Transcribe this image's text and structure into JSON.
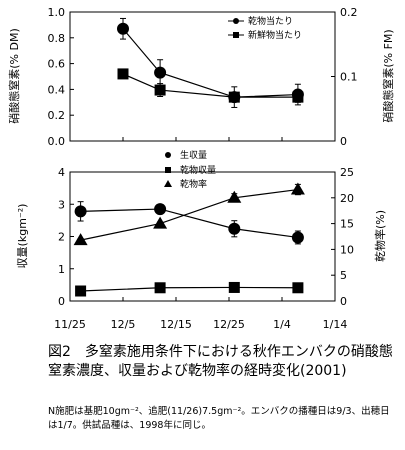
{
  "caption": "図2　多窒素施用条件下における秋作エンバクの硝酸態窒素濃度、収量および乾物率の経時変化(2001)",
  "note": "N施肥は基肥10gm⁻²、追肥(11/26)7.5gm⁻²。エンバクの播種日は9/3、出穂日は1/7。供試品種は、1998年に同じ。",
  "chart_data": [
    {
      "type": "line",
      "panel": "top",
      "x_ticks": [
        "11/25",
        "12/5",
        "12/15",
        "12/25",
        "1/4",
        "1/14"
      ],
      "x_dates": [
        "2001-12-05",
        "2001-12-12",
        "2001-12-26",
        "2002-01-07"
      ],
      "ylabel_left": "硝酸態窒素(% DM)",
      "ylabel_right": "硝酸態窒素(% FM)",
      "ylim_left": [
        0,
        1
      ],
      "ylim_right": [
        0,
        0.2
      ],
      "yticks_left": [
        "0.0",
        "0.2",
        "0.4",
        "0.6",
        "0.8",
        "1.0"
      ],
      "yticks_right": [
        "0",
        "0.1",
        "0.2"
      ],
      "legend_placement": "top-right",
      "series": [
        {
          "name": "乾物当たり",
          "axis": "left",
          "marker": "circle",
          "values": [
            0.87,
            0.53,
            0.34,
            0.36
          ],
          "errors": [
            0.08,
            0.1,
            0.08,
            0.08
          ]
        },
        {
          "name": "新鮮物当たり",
          "axis": "right",
          "marker": "square",
          "values": [
            0.104,
            0.079,
            0.068,
            0.068
          ],
          "errors": [
            0.005,
            0.01,
            0.004,
            0.008
          ]
        }
      ]
    },
    {
      "type": "line",
      "panel": "bottom",
      "x_ticks": [
        "11/25",
        "12/5",
        "12/15",
        "12/25",
        "1/4",
        "1/14"
      ],
      "x_dates": [
        "2001-11-27",
        "2001-12-12",
        "2001-12-26",
        "2002-01-07"
      ],
      "ylabel_left": "収量(kgm⁻²)",
      "ylabel_right": "乾物率(%)",
      "ylim_left": [
        0,
        4
      ],
      "ylim_right": [
        0,
        25
      ],
      "yticks_left": [
        "0",
        "1",
        "2",
        "3",
        "4"
      ],
      "yticks_right": [
        "0",
        "5",
        "10",
        "15",
        "20",
        "25"
      ],
      "legend_placement": "top-left",
      "series": [
        {
          "name": "生収量",
          "axis": "left",
          "marker": "circle",
          "values": [
            2.78,
            2.85,
            2.24,
            1.97
          ],
          "errors": [
            0.3,
            0.12,
            0.25,
            0.2
          ]
        },
        {
          "name": "乾物収量",
          "axis": "left",
          "marker": "square",
          "values": [
            0.31,
            0.41,
            0.42,
            0.41
          ],
          "errors": [
            0.02,
            0.03,
            0.03,
            0.03
          ]
        },
        {
          "name": "乾物率",
          "axis": "right",
          "marker": "triangle",
          "values": [
            11.8,
            15.0,
            20.0,
            21.6
          ],
          "errors": [
            0.3,
            0.3,
            0.8,
            1.0
          ]
        }
      ]
    }
  ]
}
